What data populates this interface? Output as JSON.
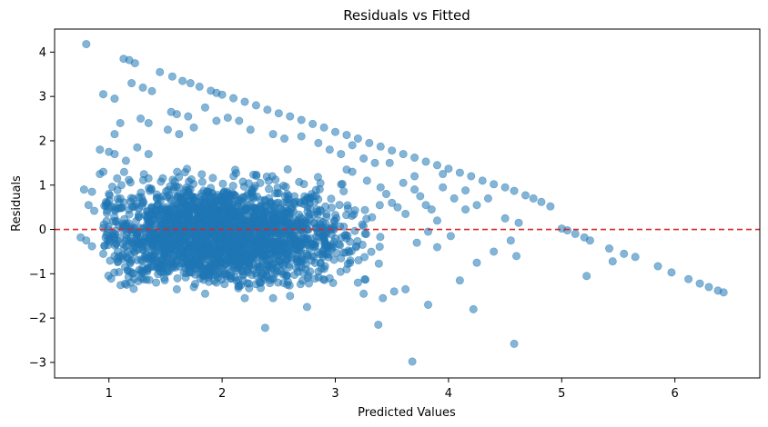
{
  "chart_data": {
    "type": "scatter",
    "title": "Residuals vs Fitted",
    "xlabel": "Predicted Values",
    "ylabel": "Residuals",
    "xlim": [
      0.52,
      6.75
    ],
    "ylim": [
      -3.35,
      4.52
    ],
    "xticks": [
      1,
      2,
      3,
      4,
      5,
      6
    ],
    "yticks": [
      -3,
      -2,
      -1,
      0,
      1,
      2,
      3,
      4
    ],
    "grid": false,
    "reference_line": {
      "y": 0,
      "style": "dashed",
      "color": "#d62728"
    },
    "point_color": "#1f77b4",
    "point_alpha": 0.55,
    "series": [
      {
        "points": [
          [
            0.8,
            4.18
          ],
          [
            1.13,
            3.85
          ],
          [
            1.18,
            3.82
          ],
          [
            1.23,
            3.75
          ],
          [
            1.45,
            3.55
          ],
          [
            1.56,
            3.45
          ],
          [
            1.65,
            3.35
          ],
          [
            1.72,
            3.3
          ],
          [
            1.8,
            3.22
          ],
          [
            1.9,
            3.13
          ],
          [
            1.95,
            3.08
          ],
          [
            2.0,
            3.04
          ],
          [
            2.1,
            2.96
          ],
          [
            2.2,
            2.88
          ],
          [
            2.3,
            2.8
          ],
          [
            2.4,
            2.7
          ],
          [
            2.5,
            2.62
          ],
          [
            2.6,
            2.55
          ],
          [
            2.7,
            2.47
          ],
          [
            2.8,
            2.38
          ],
          [
            2.9,
            2.3
          ],
          [
            3.0,
            2.2
          ],
          [
            3.1,
            2.13
          ],
          [
            3.2,
            2.05
          ],
          [
            3.3,
            1.95
          ],
          [
            3.4,
            1.87
          ],
          [
            3.5,
            1.78
          ],
          [
            3.6,
            1.7
          ],
          [
            3.7,
            1.62
          ],
          [
            3.8,
            1.53
          ],
          [
            3.9,
            1.45
          ],
          [
            4.0,
            1.37
          ],
          [
            4.1,
            1.28
          ],
          [
            4.2,
            1.2
          ],
          [
            4.3,
            1.1
          ],
          [
            4.4,
            1.02
          ],
          [
            4.5,
            0.95
          ],
          [
            4.58,
            0.87
          ],
          [
            4.68,
            0.77
          ],
          [
            4.75,
            0.7
          ],
          [
            4.82,
            0.62
          ],
          [
            4.9,
            0.52
          ],
          [
            5.0,
            0.02
          ],
          [
            5.05,
            -0.02
          ],
          [
            5.12,
            -0.1
          ],
          [
            5.2,
            -0.18
          ],
          [
            5.25,
            -0.25
          ],
          [
            5.42,
            -0.43
          ],
          [
            5.55,
            -0.55
          ],
          [
            5.65,
            -0.62
          ],
          [
            5.85,
            -0.83
          ],
          [
            5.97,
            -0.97
          ],
          [
            6.12,
            -1.12
          ],
          [
            6.22,
            -1.22
          ],
          [
            6.3,
            -1.3
          ],
          [
            6.38,
            -1.38
          ],
          [
            6.43,
            -1.42
          ],
          [
            0.95,
            3.05
          ],
          [
            1.05,
            2.95
          ],
          [
            1.2,
            3.3
          ],
          [
            1.3,
            3.2
          ],
          [
            1.38,
            3.12
          ],
          [
            1.28,
            2.5
          ],
          [
            1.35,
            2.4
          ],
          [
            1.55,
            2.65
          ],
          [
            1.6,
            2.6
          ],
          [
            1.7,
            2.55
          ],
          [
            1.85,
            2.75
          ],
          [
            1.95,
            2.45
          ],
          [
            2.05,
            2.52
          ],
          [
            2.15,
            2.45
          ],
          [
            1.75,
            2.3
          ],
          [
            1.62,
            2.15
          ],
          [
            1.52,
            2.25
          ],
          [
            1.1,
            2.4
          ],
          [
            1.05,
            2.15
          ],
          [
            0.92,
            1.8
          ],
          [
            1.0,
            1.75
          ],
          [
            1.05,
            1.7
          ],
          [
            1.25,
            1.85
          ],
          [
            1.15,
            1.55
          ],
          [
            1.35,
            1.7
          ],
          [
            2.25,
            2.25
          ],
          [
            2.45,
            2.15
          ],
          [
            2.55,
            2.05
          ],
          [
            2.7,
            2.1
          ],
          [
            2.85,
            1.95
          ],
          [
            2.95,
            1.8
          ],
          [
            3.05,
            1.7
          ],
          [
            3.15,
            1.9
          ],
          [
            3.25,
            1.6
          ],
          [
            3.35,
            1.5
          ],
          [
            3.1,
            1.35
          ],
          [
            3.15,
            1.3
          ],
          [
            3.28,
            1.1
          ],
          [
            3.4,
            0.95
          ],
          [
            3.45,
            0.8
          ],
          [
            3.5,
            0.6
          ],
          [
            3.55,
            0.5
          ],
          [
            3.62,
            0.35
          ],
          [
            3.6,
            1.05
          ],
          [
            3.7,
            0.9
          ],
          [
            3.75,
            0.75
          ],
          [
            3.8,
            0.55
          ],
          [
            3.85,
            0.45
          ],
          [
            3.9,
            0.2
          ],
          [
            3.95,
            0.95
          ],
          [
            4.05,
            0.7
          ],
          [
            4.15,
            0.45
          ],
          [
            4.25,
            0.55
          ],
          [
            4.35,
            0.7
          ],
          [
            4.5,
            0.25
          ],
          [
            4.62,
            0.15
          ],
          [
            3.48,
            1.5
          ],
          [
            3.7,
            1.2
          ],
          [
            3.95,
            1.25
          ],
          [
            4.15,
            0.88
          ],
          [
            0.78,
            0.9
          ],
          [
            0.85,
            0.85
          ],
          [
            0.82,
            0.55
          ],
          [
            0.87,
            0.42
          ],
          [
            0.75,
            -0.18
          ],
          [
            0.8,
            -0.25
          ],
          [
            0.85,
            -0.38
          ],
          [
            0.95,
            -0.55
          ],
          [
            1.05,
            -0.6
          ],
          [
            0.92,
            1.25
          ],
          [
            0.95,
            1.3
          ],
          [
            1.0,
            0.8
          ],
          [
            1.05,
            0.5
          ],
          [
            2.38,
            -2.22
          ],
          [
            3.38,
            -2.15
          ],
          [
            3.68,
            -2.98
          ],
          [
            4.58,
            -2.58
          ],
          [
            4.22,
            -1.8
          ],
          [
            3.82,
            -1.7
          ],
          [
            3.25,
            -1.45
          ],
          [
            3.42,
            -1.55
          ],
          [
            3.52,
            -1.4
          ],
          [
            3.2,
            -1.2
          ],
          [
            3.62,
            -1.35
          ],
          [
            4.1,
            -1.15
          ],
          [
            4.25,
            -0.75
          ],
          [
            4.4,
            -0.5
          ],
          [
            4.55,
            -0.25
          ],
          [
            4.6,
            -0.6
          ],
          [
            3.72,
            -0.3
          ],
          [
            3.9,
            -0.4
          ],
          [
            4.02,
            -0.15
          ],
          [
            3.82,
            -0.05
          ],
          [
            2.75,
            -1.75
          ],
          [
            2.6,
            -1.5
          ],
          [
            2.45,
            -1.55
          ],
          [
            2.2,
            -1.55
          ],
          [
            1.85,
            -1.45
          ],
          [
            5.22,
            -1.05
          ],
          [
            5.45,
            -0.72
          ],
          [
            2.55,
            -0.35
          ],
          [
            2.35,
            -0.55
          ],
          [
            2.68,
            -0.85
          ],
          [
            2.85,
            -0.95
          ],
          [
            2.95,
            -1.1
          ],
          [
            3.05,
            -0.65
          ],
          [
            3.1,
            -0.9
          ],
          [
            1.95,
            -1.2
          ],
          [
            1.75,
            -1.3
          ],
          [
            1.6,
            -1.35
          ],
          [
            1.45,
            -0.95
          ],
          [
            1.3,
            -0.85
          ],
          [
            1.2,
            -0.7
          ],
          [
            2.9,
            -0.45
          ],
          [
            3.0,
            -0.2
          ]
        ],
        "cluster": {
          "center": [
            1.95,
            -0.15
          ],
          "spread": [
            0.55,
            0.58
          ],
          "x_range": [
            0.95,
            3.4
          ],
          "y_range": [
            -1.35,
            1.4
          ],
          "count": 2200
        }
      }
    ]
  }
}
